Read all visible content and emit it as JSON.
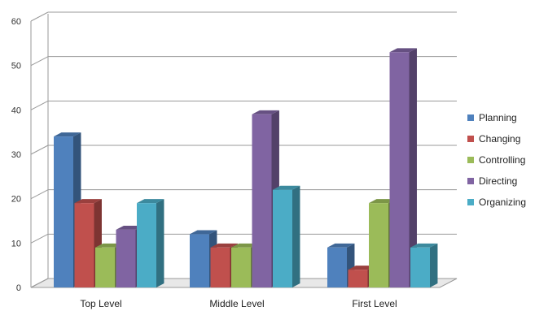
{
  "chart_data": {
    "type": "bar",
    "categories": [
      "Top Level",
      "Middle Level",
      "First Level"
    ],
    "series": [
      {
        "name": "Planning",
        "color": "#4F81BD",
        "values": [
          34,
          12,
          9
        ]
      },
      {
        "name": "Changing",
        "color": "#C0504D",
        "values": [
          19,
          9,
          4
        ]
      },
      {
        "name": "Controlling",
        "color": "#9BBB59",
        "values": [
          9,
          9,
          19
        ]
      },
      {
        "name": "Directing",
        "color": "#8064A2",
        "values": [
          13,
          39,
          53
        ]
      },
      {
        "name": "Organizing",
        "color": "#4BACC6",
        "values": [
          19,
          22,
          9
        ]
      }
    ],
    "ylim": [
      0,
      60
    ],
    "yticks": [
      0,
      10,
      20,
      30,
      40,
      50,
      60
    ],
    "grid": true,
    "legend_position": "right",
    "style": "3d-clustered-column"
  }
}
